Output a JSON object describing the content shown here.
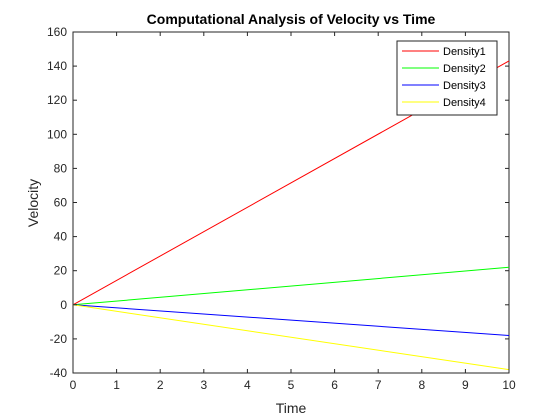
{
  "chart_data": {
    "type": "line",
    "title": "Computational Analysis of Velocity vs Time",
    "xlabel": "Time",
    "ylabel": "Velocity",
    "xlim": [
      0,
      10
    ],
    "ylim": [
      -40,
      160
    ],
    "xticks": [
      0,
      1,
      2,
      3,
      4,
      5,
      6,
      7,
      8,
      9,
      10
    ],
    "yticks": [
      -40,
      -20,
      0,
      20,
      40,
      60,
      80,
      100,
      120,
      140,
      160
    ],
    "grid": false,
    "legend_position": "top-right",
    "series": [
      {
        "name": "Density1",
        "color": "#ff0000",
        "x": [
          0,
          10
        ],
        "y": [
          0,
          143
        ]
      },
      {
        "name": "Density2",
        "color": "#00ff00",
        "x": [
          0,
          10
        ],
        "y": [
          0,
          22
        ]
      },
      {
        "name": "Density3",
        "color": "#0000ff",
        "x": [
          0,
          10
        ],
        "y": [
          0,
          -18
        ]
      },
      {
        "name": "Density4",
        "color": "#ffff00",
        "x": [
          0,
          10
        ],
        "y": [
          0,
          -38
        ]
      }
    ]
  }
}
